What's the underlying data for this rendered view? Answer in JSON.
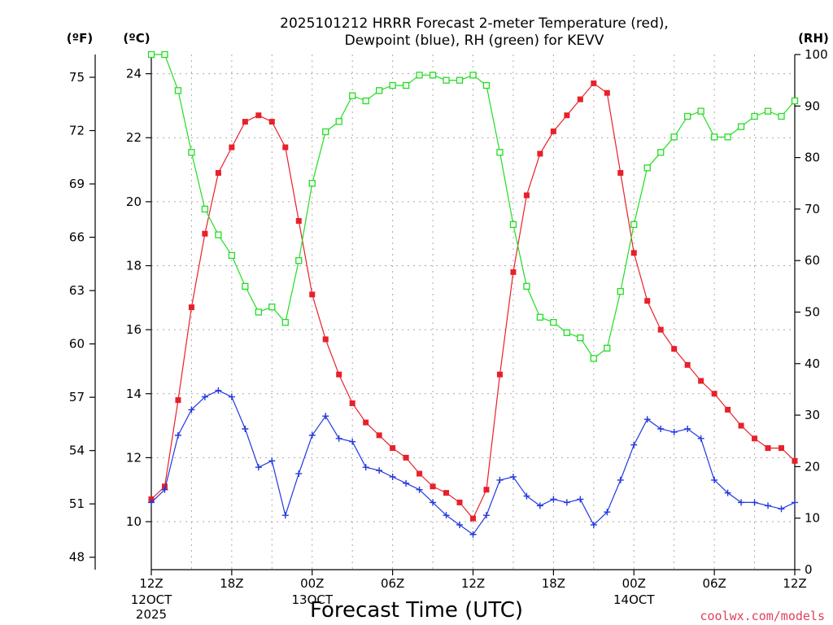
{
  "title": {
    "line1": "2025101212 HRRR Forecast 2-meter Temperature (red),",
    "line2": "Dewpoint (blue), RH (green) for KEVV"
  },
  "units": {
    "f": "(ºF)",
    "c": "(ºC)",
    "rh": "(RH)"
  },
  "credit": "coolwx.com/models",
  "chart_data": {
    "type": "line",
    "title": "2025101212 HRRR Forecast 2-meter Temperature (red), Dewpoint (blue), RH (green) for KEVV",
    "xlabel": "Forecast Time (UTC)",
    "x": [
      0,
      1,
      2,
      3,
      4,
      5,
      6,
      7,
      8,
      9,
      10,
      11,
      12,
      13,
      14,
      15,
      16,
      17,
      18,
      19,
      20,
      21,
      22,
      23,
      24,
      25,
      26,
      27,
      28,
      29,
      30,
      31,
      32,
      33,
      34,
      35,
      36,
      37,
      38,
      39,
      40,
      41,
      42,
      43,
      44,
      45,
      46,
      47,
      48
    ],
    "x_unit": "hours since 2025-10-12 12Z",
    "xlim": [
      0,
      48
    ],
    "x_ticks": [
      {
        "x": 0,
        "label": "12Z",
        "sub": [
          "12OCT",
          "2025"
        ]
      },
      {
        "x": 6,
        "label": "18Z",
        "sub": []
      },
      {
        "x": 12,
        "label": "00Z",
        "sub": [
          "13OCT"
        ]
      },
      {
        "x": 18,
        "label": "06Z",
        "sub": []
      },
      {
        "x": 24,
        "label": "12Z",
        "sub": []
      },
      {
        "x": 30,
        "label": "18Z",
        "sub": []
      },
      {
        "x": 36,
        "label": "00Z",
        "sub": [
          "14OCT"
        ]
      },
      {
        "x": 42,
        "label": "06Z",
        "sub": []
      },
      {
        "x": 48,
        "label": "12Z",
        "sub": []
      }
    ],
    "y_left_c": {
      "label": "(ºC)",
      "lim": [
        8.5,
        24.6
      ],
      "ticks": [
        10,
        12,
        14,
        16,
        18,
        20,
        22,
        24
      ]
    },
    "y_left_f": {
      "label": "(ºF)",
      "ticks": [
        48,
        51,
        54,
        57,
        60,
        63,
        66,
        69,
        72,
        75
      ]
    },
    "y_right": {
      "label": "(RH)",
      "lim": [
        0,
        100
      ],
      "ticks": [
        0,
        10,
        20,
        30,
        40,
        50,
        60,
        70,
        80,
        90,
        100
      ]
    },
    "grid": true,
    "series": [
      {
        "axis": "c",
        "color": "#e8202a",
        "marker": "filled-square",
        "values": [
          10.7,
          11.1,
          13.8,
          16.7,
          19.0,
          20.9,
          21.7,
          22.5,
          22.7,
          22.5,
          21.7,
          19.4,
          17.1,
          15.7,
          14.6,
          13.7,
          13.1,
          12.7,
          12.3,
          12.0,
          11.5,
          11.1,
          10.9,
          10.6,
          10.1,
          11.0,
          14.6,
          17.8,
          20.2,
          21.5,
          22.2,
          22.7,
          23.2,
          23.7,
          23.4,
          20.9,
          18.4,
          16.9,
          16.0,
          15.4,
          14.9,
          14.4,
          14.0,
          13.5,
          13.0,
          12.6,
          12.3,
          12.3,
          11.9
        ]
      },
      {
        "axis": "c",
        "color": "#2238e0",
        "marker": "plus",
        "values": [
          10.6,
          11.0,
          12.7,
          13.5,
          13.9,
          14.1,
          13.9,
          12.9,
          11.7,
          11.9,
          10.2,
          11.5,
          12.7,
          13.3,
          12.6,
          12.5,
          11.7,
          11.6,
          11.4,
          11.2,
          11.0,
          10.6,
          10.2,
          9.9,
          9.6,
          10.2,
          11.3,
          11.4,
          10.8,
          10.5,
          10.7,
          10.6,
          10.7,
          9.9,
          10.3,
          11.3,
          12.4,
          13.2,
          12.9,
          12.8,
          12.9,
          12.6,
          11.3,
          10.9,
          10.6,
          10.6,
          10.5,
          10.4,
          10.6
        ]
      },
      {
        "axis": "rh",
        "color": "#22dd22",
        "marker": "open-square",
        "values": [
          100,
          100,
          93,
          81,
          70,
          65,
          61,
          55,
          50,
          51,
          48,
          60,
          75,
          85,
          87,
          92,
          91,
          93,
          94,
          94,
          96,
          96,
          95,
          95,
          96,
          94,
          81,
          67,
          55,
          49,
          48,
          46,
          45,
          41,
          43,
          54,
          67,
          78,
          81,
          84,
          88,
          89,
          84,
          84,
          86,
          88,
          89,
          88,
          91
        ]
      }
    ]
  }
}
